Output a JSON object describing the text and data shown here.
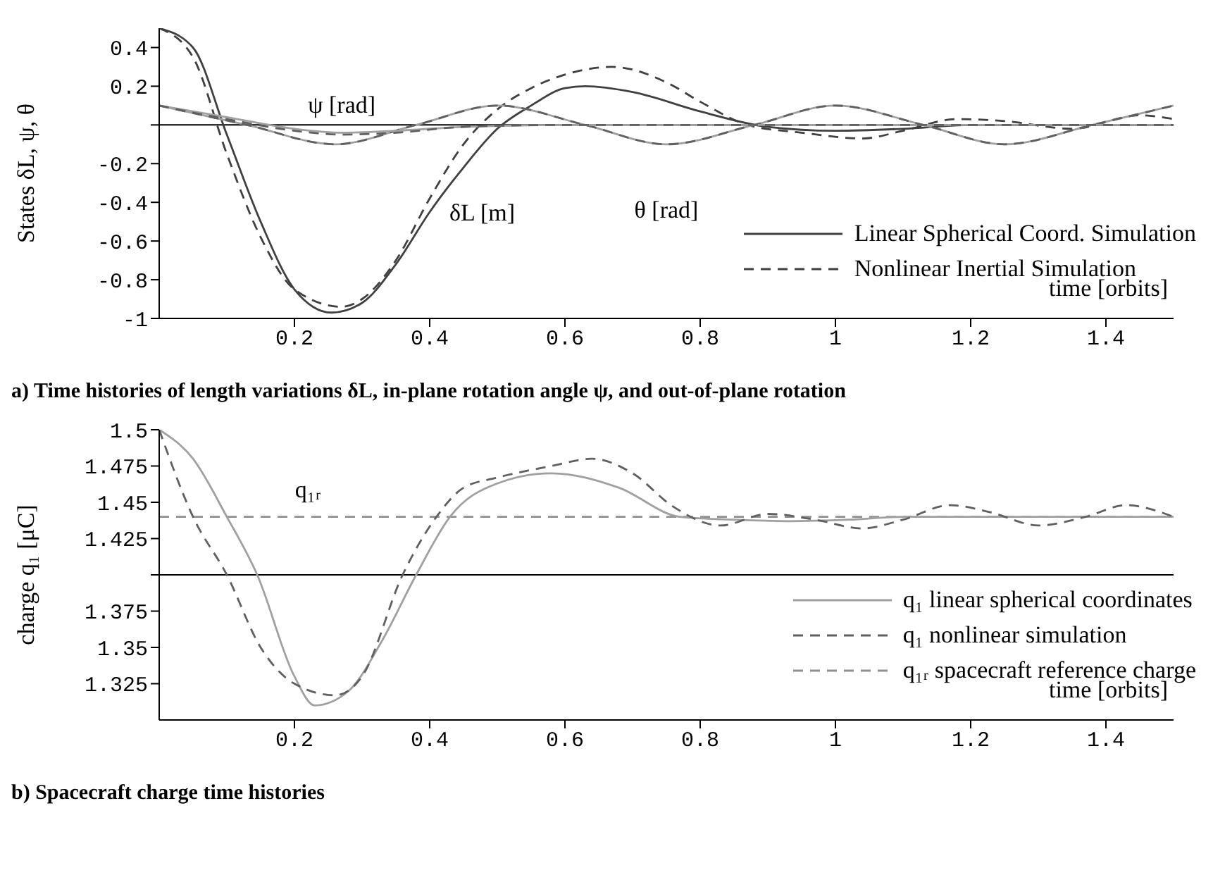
{
  "chart_data": [
    {
      "type": "line",
      "title": "a) Time histories of length variations δL, in-plane rotation angle ψ, and out-of-plane rotation",
      "xlabel": "time [orbits]",
      "ylabel": "States δL, ψ, θ",
      "xlim": [
        0,
        1.5
      ],
      "xticks": [
        0.2,
        0.4,
        0.6,
        0.8,
        1,
        1.2,
        1.4
      ],
      "ylim": [
        -1,
        0.5
      ],
      "yticks": [
        -1,
        -0.8,
        -0.6,
        -0.4,
        -0.2,
        {
          "value": 0,
          "label": null
        },
        0.2,
        0.4
      ],
      "legend": "bottom right",
      "grid": false,
      "ref_lines": [
        {
          "axis": "y",
          "value": 0,
          "color": "#000000",
          "line_style": "solid"
        }
      ],
      "annotations": [
        {
          "text": "ψ [rad]",
          "x": 0.27,
          "y": -0.04
        },
        {
          "text": "θ [rad]",
          "x": 0.75,
          "y": -0.1
        },
        {
          "text": "δL [m]",
          "x": 0.4,
          "y": -0.45
        }
      ],
      "series": [
        {
          "name": "Linear Spherical Coord. Simulation",
          "color": "#404040",
          "line_style": "solid",
          "x": [
            0,
            0.05,
            0.1,
            0.15,
            0.2,
            0.255,
            0.3,
            0.35,
            0.4,
            0.45,
            0.5,
            0.55,
            0.6,
            0.63,
            0.7,
            0.8,
            0.9,
            1,
            1.1,
            1.2,
            1.5
          ],
          "values": [
            0.5,
            0.4,
            -0.05,
            -0.5,
            -0.85,
            -0.97,
            -0.92,
            -0.72,
            -0.45,
            -0.22,
            -0.02,
            0.1,
            0.19,
            0.2,
            0.17,
            0.07,
            -0.01,
            -0.03,
            -0.02,
            0,
            0
          ]
        },
        {
          "name": "Nonlinear Inertial Simulation",
          "color": "#404040",
          "line_style": "dashed",
          "x": [
            0,
            0.05,
            0.1,
            0.15,
            0.2,
            0.27,
            0.3,
            0.35,
            0.4,
            0.45,
            0.5,
            0.55,
            0.6,
            0.67,
            0.75,
            0.8,
            0.87,
            0.95,
            1.04,
            1.1,
            1.18,
            1.25,
            1.35,
            1.45,
            1.5
          ],
          "values": [
            0.5,
            0.35,
            -0.15,
            -0.58,
            -0.85,
            -0.94,
            -0.9,
            -0.7,
            -0.38,
            -0.1,
            0.08,
            0.19,
            0.26,
            0.3,
            0.22,
            0.12,
            0,
            -0.04,
            -0.07,
            -0.03,
            0.03,
            0.02,
            -0.02,
            0.05,
            0.03
          ]
        },
        {
          "color": "#a0a0a0",
          "line_style": "solid",
          "x": [
            0,
            0.13,
            0.26,
            0.38,
            0.5,
            0.63,
            0.75,
            0.88,
            1,
            1.13,
            1.25,
            1.38,
            1.5
          ],
          "values": [
            0.1,
            0,
            -0.1,
            0,
            0.1,
            0,
            -0.1,
            0,
            0.1,
            0,
            -0.1,
            0,
            0.1
          ]
        },
        {
          "color": "#606060",
          "line_style": "dashed",
          "x": [
            0,
            0.13,
            0.26,
            0.38,
            0.5,
            0.63,
            0.75,
            0.88,
            1,
            1.13,
            1.25,
            1.38,
            1.5
          ],
          "values": [
            0.1,
            0,
            -0.1,
            0,
            0.1,
            0,
            -0.1,
            0,
            0.1,
            0,
            -0.1,
            0,
            0.1
          ]
        },
        {
          "color": "#a0a0a0",
          "line_style": "solid",
          "x": [
            0,
            0.1,
            0.2,
            0.27,
            0.35,
            0.45,
            0.6,
            1,
            1.5
          ],
          "values": [
            0.1,
            0.04,
            -0.02,
            -0.04,
            -0.03,
            -0.01,
            0,
            0,
            0
          ]
        },
        {
          "color": "#606060",
          "line_style": "dashed",
          "x": [
            0,
            0.1,
            0.2,
            0.27,
            0.35,
            0.45,
            0.6,
            1,
            1.5
          ],
          "values": [
            0.1,
            0.03,
            -0.03,
            -0.05,
            -0.04,
            -0.01,
            0,
            0,
            0
          ]
        }
      ]
    },
    {
      "type": "line",
      "title": "b) Spacecraft charge time histories",
      "xlabel": "time [orbits]",
      "ylabel": "charge q₁ [μC]",
      "xlim": [
        0,
        1.5
      ],
      "xticks": [
        0.2,
        0.4,
        0.6,
        0.8,
        1,
        1.2,
        1.4
      ],
      "ylim": [
        1.3,
        1.5
      ],
      "yticks": [
        1.325,
        1.35,
        1.375,
        {
          "value": 1.4,
          "label": null
        },
        1.425,
        1.45,
        1.475,
        1.5
      ],
      "legend": "bottom right",
      "grid": false,
      "ref_lines": [
        {
          "axis": "y",
          "value": 1.4,
          "color": "#000000",
          "line_style": "solid"
        }
      ],
      "annotations": [
        {
          "text": "q₁ᵣ",
          "x": 0.22,
          "y": 1.44
        }
      ],
      "series": [
        {
          "name": "q₁ᵣ spacecraft reference charge",
          "color": "#909090",
          "line_style": "dashed",
          "x": [
            0,
            1.5
          ],
          "values": [
            1.44,
            1.44
          ]
        },
        {
          "name": "q₁ linear spherical coordinates",
          "color": "#a0a0a0",
          "line_style": "solid",
          "x": [
            0,
            0.05,
            0.1,
            0.145,
            0.2,
            0.23,
            0.28,
            0.33,
            0.38,
            0.43,
            0.5,
            0.58,
            0.68,
            0.77,
            0.85,
            0.93,
            1.02,
            1.1,
            1.5
          ],
          "values": [
            1.5,
            1.48,
            1.44,
            1.4,
            1.33,
            1.31,
            1.32,
            1.355,
            1.4,
            1.44,
            1.463,
            1.47,
            1.46,
            1.44,
            1.438,
            1.437,
            1.438,
            1.44,
            1.44
          ]
        },
        {
          "name": "q₁ nonlinear simulation",
          "color": "#606060",
          "line_style": "dashed",
          "x": [
            0,
            0.05,
            0.1,
            0.15,
            0.2,
            0.26,
            0.3,
            0.36,
            0.41,
            0.45,
            0.5,
            0.58,
            0.64,
            0.7,
            0.76,
            0.83,
            0.9,
            0.97,
            1.04,
            1.1,
            1.17,
            1.23,
            1.3,
            1.37,
            1.43,
            1.5
          ],
          "values": [
            1.5,
            1.44,
            1.4,
            1.35,
            1.325,
            1.317,
            1.33,
            1.4,
            1.44,
            1.46,
            1.467,
            1.475,
            1.48,
            1.47,
            1.447,
            1.434,
            1.442,
            1.438,
            1.432,
            1.438,
            1.448,
            1.443,
            1.434,
            1.44,
            1.448,
            1.44
          ]
        }
      ]
    }
  ]
}
